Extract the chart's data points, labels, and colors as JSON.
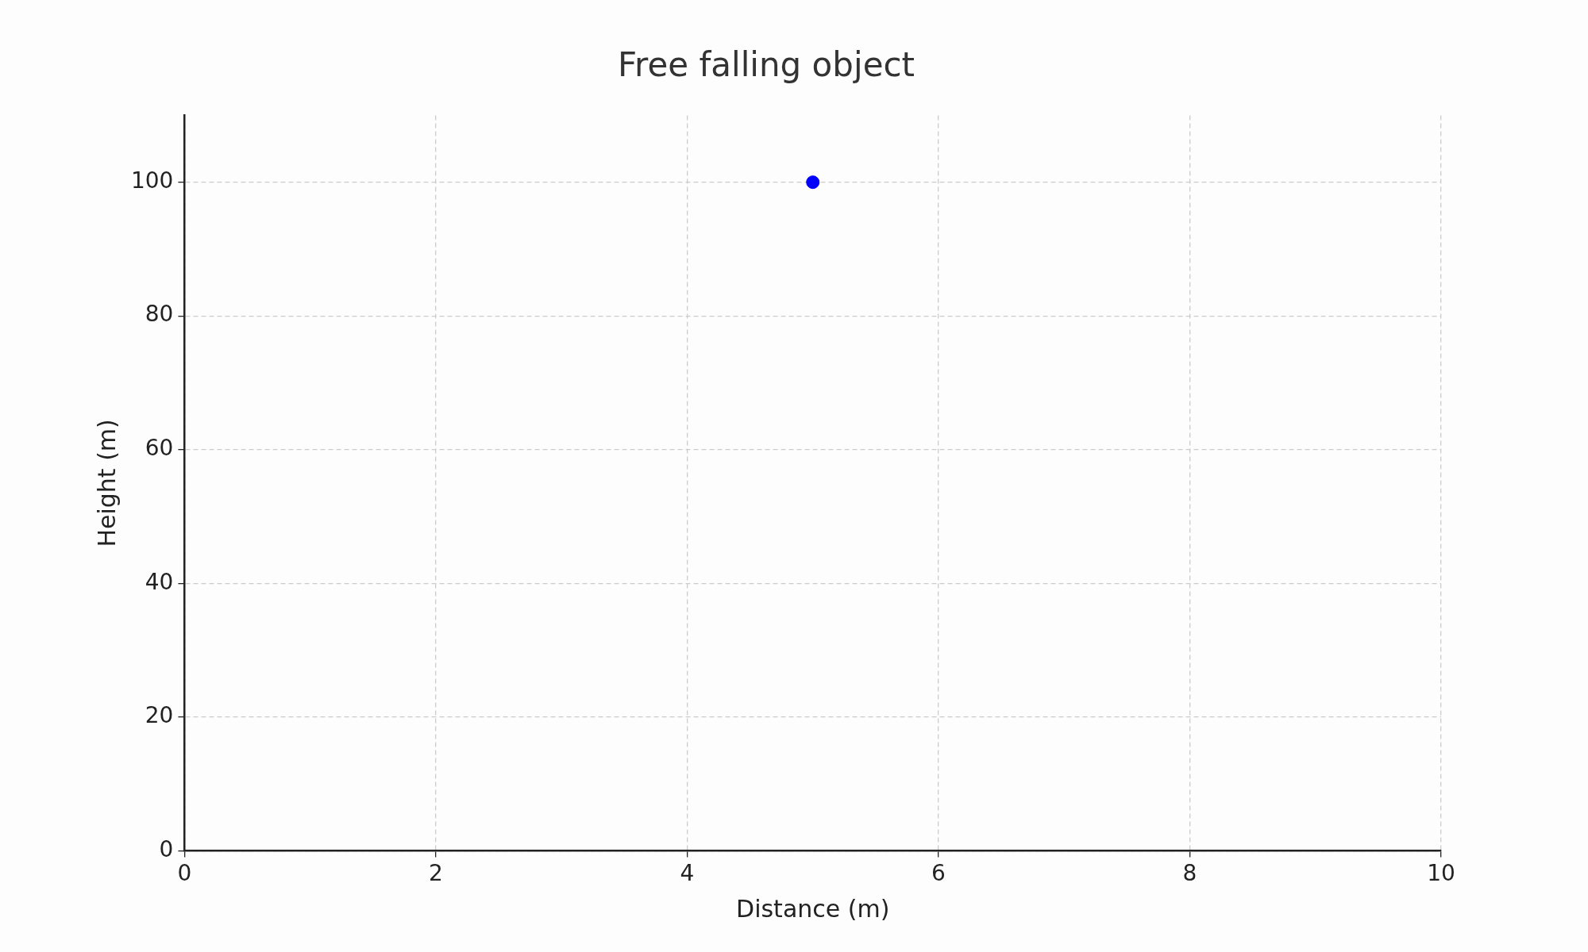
{
  "chart_data": {
    "type": "scatter",
    "title": "Free falling object",
    "xlabel": "Distance (m)",
    "ylabel": "Height (m)",
    "x": [
      5
    ],
    "values": [
      100
    ],
    "color": "#0000ff",
    "marker": "circle",
    "xlim": [
      0,
      10
    ],
    "xticks": [
      0,
      2,
      4,
      6,
      8,
      10
    ],
    "ylim": [
      0,
      110
    ],
    "yticks": [
      0,
      20,
      40,
      60,
      80,
      100
    ],
    "grid": true
  }
}
